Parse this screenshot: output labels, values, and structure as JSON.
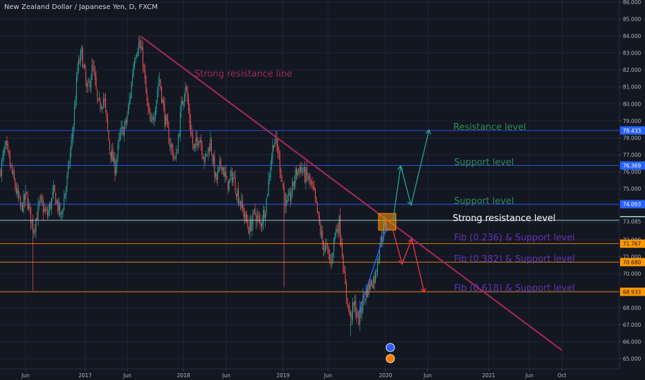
{
  "header": {
    "title": "New Zealand Dollar / Japanese Yen, D, FXCM"
  },
  "chart_data": {
    "type": "candlestick",
    "x_tick_labels": [
      "Jun",
      "2017",
      "Jun",
      "2018",
      "Jun",
      "2019",
      "Jun",
      "2020",
      "Jun",
      "2021",
      "Jun",
      "Oct"
    ],
    "y_tick_labels": [
      "65.000",
      "66.000",
      "67.000",
      "68.000",
      "69.000",
      "70.000",
      "71.000",
      "72.000",
      "73.000",
      "74.000",
      "75.000",
      "76.000",
      "77.000",
      "78.000",
      "79.000",
      "80.000",
      "81.000",
      "82.000",
      "83.000",
      "84.000",
      "85.000",
      "86.000"
    ],
    "ylim": [
      64.7,
      86.1
    ],
    "price_flags": [
      {
        "value": "78.433",
        "color": "#2962ff",
        "text_color": "#ffffff"
      },
      {
        "value": "76.369",
        "color": "#2962ff",
        "text_color": "#ffffff"
      },
      {
        "value": "74.093",
        "color": "#2962ff",
        "text_color": "#ffffff"
      },
      {
        "value": "73.142",
        "color": "#b2ebf2",
        "text_color": "#131722"
      },
      {
        "value": "73.085",
        "color": "#131722",
        "text_color": "#b2b5be"
      },
      {
        "value": "71.767",
        "color": "#ff9800",
        "text_color": "#131722"
      },
      {
        "value": "70.680",
        "color": "#ff9800",
        "text_color": "#131722"
      },
      {
        "value": "68.933",
        "color": "#ff9800",
        "text_color": "#131722"
      }
    ],
    "horizontal_levels": [
      {
        "value": 78.433,
        "color": "#2962ff"
      },
      {
        "value": 76.369,
        "color": "#2962ff"
      },
      {
        "value": 74.093,
        "color": "#2962ff"
      },
      {
        "value": 73.142,
        "color": "#b2ebf2"
      },
      {
        "value": 71.767,
        "color": "#ff9800"
      },
      {
        "value": 70.68,
        "color": "#ff9800"
      },
      {
        "value": 68.933,
        "color": "#ff9800"
      }
    ],
    "annotations": [
      {
        "text": "Strong resistance line",
        "color": "#a02859"
      },
      {
        "text": "Resistance level",
        "color": "#2e8b57"
      },
      {
        "text": "Support level",
        "color": "#2e8b57"
      },
      {
        "text": "Support level",
        "color": "#2e8b57"
      },
      {
        "text": "Strong resistance level",
        "color": "#ffffff"
      },
      {
        "text": "Fib (0.236) & Support level",
        "color": "#5e35b1"
      },
      {
        "text": "Fib (0.382) & Support level",
        "color": "#5e35b1"
      },
      {
        "text": "Fib (0.618) & Support level",
        "color": "#5e35b1"
      }
    ],
    "up_color": "#26a69a",
    "down_color": "#ef5350"
  }
}
